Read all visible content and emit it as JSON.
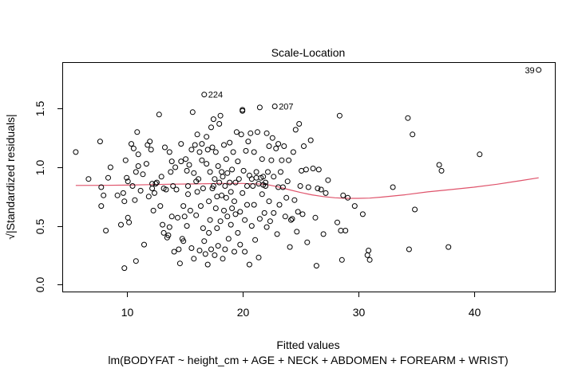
{
  "chart_data": {
    "type": "scatter",
    "title": "Scale-Location",
    "xlabel": "Fitted values",
    "ylabel": "√|Standardized residuals|",
    "subtitle": "lm(BODYFAT ~ height_cm + AGE + NECK + ABDOMEN + FOREARM + WRIST)",
    "xlim": [
      4.5,
      47.0
    ],
    "ylim": [
      -0.06,
      1.89
    ],
    "x_ticks": [
      10,
      20,
      30,
      40
    ],
    "y_ticks": [
      0.0,
      0.5,
      1.0,
      1.5
    ],
    "x_tick_labels": [
      "10",
      "20",
      "30",
      "40"
    ],
    "y_tick_labels": [
      "0.0",
      "0.5",
      "1.0",
      "1.5"
    ],
    "grid": false,
    "legend": "none",
    "point_color": "#000000",
    "smooth_color": "#DF536B",
    "points": [
      [
        5.6,
        1.13
      ],
      [
        6.7,
        0.9
      ],
      [
        7.7,
        1.22
      ],
      [
        7.8,
        0.83
      ],
      [
        7.8,
        0.67
      ],
      [
        8.0,
        0.76
      ],
      [
        8.2,
        0.46
      ],
      [
        8.4,
        0.91
      ],
      [
        8.6,
        1.0
      ],
      [
        9.2,
        0.76
      ],
      [
        9.5,
        0.51
      ],
      [
        9.7,
        0.78
      ],
      [
        9.8,
        0.14
      ],
      [
        9.8,
        0.71
      ],
      [
        9.9,
        1.06
      ],
      [
        10.0,
        0.91
      ],
      [
        10.1,
        0.88
      ],
      [
        10.1,
        0.57
      ],
      [
        10.2,
        0.53
      ],
      [
        10.4,
        1.2
      ],
      [
        10.5,
        0.84
      ],
      [
        10.6,
        1.16
      ],
      [
        10.7,
        0.72
      ],
      [
        10.8,
        0.96
      ],
      [
        10.8,
        0.2
      ],
      [
        10.9,
        1.3
      ],
      [
        11.0,
        1.11
      ],
      [
        11.0,
        1.01
      ],
      [
        11.2,
        0.8
      ],
      [
        11.4,
        0.94
      ],
      [
        11.5,
        0.34
      ],
      [
        11.7,
        1.03
      ],
      [
        11.8,
        1.19
      ],
      [
        11.9,
        0.75
      ],
      [
        12.0,
        1.22
      ],
      [
        12.1,
        1.15
      ],
      [
        12.2,
        0.86
      ],
      [
        12.2,
        0.82
      ],
      [
        12.3,
        0.63
      ],
      [
        12.4,
        0.78
      ],
      [
        12.5,
        0.86
      ],
      [
        12.6,
        0.87
      ],
      [
        12.8,
        1.45
      ],
      [
        12.9,
        0.67
      ],
      [
        13.0,
        0.92
      ],
      [
        13.1,
        0.51
      ],
      [
        13.2,
        0.44
      ],
      [
        13.2,
        0.82
      ],
      [
        13.3,
        1.17
      ],
      [
        13.4,
        0.81
      ],
      [
        13.5,
        0.4
      ],
      [
        13.6,
        0.42
      ],
      [
        13.7,
        1.13
      ],
      [
        13.7,
        0.49
      ],
      [
        13.8,
        0.96
      ],
      [
        13.9,
        1.05
      ],
      [
        13.9,
        0.58
      ],
      [
        14.0,
        0.84
      ],
      [
        14.1,
        0.28
      ],
      [
        14.2,
        1.0
      ],
      [
        14.3,
        0.81
      ],
      [
        14.4,
        0.57
      ],
      [
        14.5,
        0.3
      ],
      [
        14.6,
        0.18
      ],
      [
        14.7,
        1.05
      ],
      [
        14.7,
        1.2
      ],
      [
        14.8,
        0.39
      ],
      [
        14.9,
        0.37
      ],
      [
        14.9,
        0.67
      ],
      [
        15.0,
        0.58
      ],
      [
        15.1,
        1.07
      ],
      [
        15.2,
        0.5
      ],
      [
        15.2,
        0.97
      ],
      [
        15.3,
        0.77
      ],
      [
        15.3,
        0.84
      ],
      [
        15.4,
        1.02
      ],
      [
        15.5,
        0.63
      ],
      [
        15.6,
        1.15
      ],
      [
        15.6,
        0.31
      ],
      [
        15.7,
        1.47
      ],
      [
        15.8,
        0.95
      ],
      [
        15.8,
        0.22
      ],
      [
        15.9,
        1.19
      ],
      [
        16.0,
        0.59
      ],
      [
        16.0,
        0.88
      ],
      [
        16.1,
        1.28
      ],
      [
        16.1,
        0.79
      ],
      [
        16.2,
        0.9
      ],
      [
        16.3,
        1.13
      ],
      [
        16.3,
        0.29
      ],
      [
        16.4,
        0.67
      ],
      [
        16.5,
        1.06
      ],
      [
        16.5,
        1.2
      ],
      [
        16.6,
        0.48
      ],
      [
        16.6,
        0.82
      ],
      [
        16.7,
        1.62
      ],
      [
        16.7,
        0.37
      ],
      [
        16.8,
        0.26
      ],
      [
        16.9,
        1.26
      ],
      [
        16.9,
        1.03
      ],
      [
        17.0,
        1.15
      ],
      [
        17.0,
        0.17
      ],
      [
        17.1,
        0.71
      ],
      [
        17.1,
        0.44
      ],
      [
        17.2,
        0.55
      ],
      [
        17.2,
        0.96
      ],
      [
        17.3,
        0.3
      ],
      [
        17.3,
        1.34
      ],
      [
        17.4,
        1.17
      ],
      [
        17.4,
        0.82
      ],
      [
        17.5,
        0.84
      ],
      [
        17.5,
        1.41
      ],
      [
        17.6,
        0.9
      ],
      [
        17.6,
        0.25
      ],
      [
        17.7,
        1.13
      ],
      [
        17.7,
        0.65
      ],
      [
        17.8,
        0.75
      ],
      [
        17.8,
        0.48
      ],
      [
        17.9,
        1.01
      ],
      [
        17.9,
        0.33
      ],
      [
        18.0,
        1.37
      ],
      [
        18.0,
        0.87
      ],
      [
        18.1,
        1.44
      ],
      [
        18.1,
        0.54
      ],
      [
        18.2,
        0.96
      ],
      [
        18.2,
        0.76
      ],
      [
        18.3,
        0.22
      ],
      [
        18.3,
        0.92
      ],
      [
        18.4,
        1.19
      ],
      [
        18.4,
        0.63
      ],
      [
        18.5,
        0.84
      ],
      [
        18.5,
        0.3
      ],
      [
        18.6,
        1.07
      ],
      [
        18.6,
        0.74
      ],
      [
        18.7,
        0.58
      ],
      [
        18.7,
        0.95
      ],
      [
        18.8,
        0.39
      ],
      [
        18.9,
        1.21
      ],
      [
        18.9,
        0.87
      ],
      [
        19.0,
        0.51
      ],
      [
        19.0,
        0.79
      ],
      [
        19.1,
        0.98
      ],
      [
        19.1,
        0.65
      ],
      [
        19.2,
        1.13
      ],
      [
        19.3,
        0.28
      ],
      [
        19.3,
        0.71
      ],
      [
        19.4,
        0.87
      ],
      [
        19.4,
        0.6
      ],
      [
        19.5,
        1.3
      ],
      [
        19.6,
        0.44
      ],
      [
        19.6,
        1.05
      ],
      [
        19.7,
        0.9
      ],
      [
        19.8,
        0.62
      ],
      [
        19.8,
        0.34
      ],
      [
        19.9,
        1.28
      ],
      [
        20.0,
        0.78
      ],
      [
        20.0,
        1.49
      ],
      [
        20.0,
        1.48
      ],
      [
        20.1,
        0.97
      ],
      [
        20.2,
        0.55
      ],
      [
        20.2,
        0.28
      ],
      [
        20.3,
        1.14
      ],
      [
        20.4,
        0.84
      ],
      [
        20.4,
        0.68
      ],
      [
        20.5,
        1.22
      ],
      [
        20.6,
        0.93
      ],
      [
        20.6,
        0.17
      ],
      [
        20.7,
        1.29
      ],
      [
        20.8,
        0.9
      ],
      [
        20.8,
        0.5
      ],
      [
        20.9,
        0.84
      ],
      [
        21.0,
        0.68
      ],
      [
        21.0,
        1.13
      ],
      [
        21.1,
        0.38
      ],
      [
        21.2,
        0.96
      ],
      [
        21.2,
        0.91
      ],
      [
        21.3,
        1.3
      ],
      [
        21.4,
        0.86
      ],
      [
        21.4,
        0.23
      ],
      [
        21.5,
        0.56
      ],
      [
        21.5,
        1.51
      ],
      [
        21.6,
        0.91
      ],
      [
        21.7,
        0.77
      ],
      [
        21.7,
        1.07
      ],
      [
        21.8,
        0.85
      ],
      [
        21.8,
        0.92
      ],
      [
        21.9,
        0.61
      ],
      [
        22.0,
        0.87
      ],
      [
        22.0,
        0.84
      ],
      [
        22.1,
        1.29
      ],
      [
        22.1,
        0.49
      ],
      [
        22.2,
        0.96
      ],
      [
        22.3,
        0.71
      ],
      [
        22.3,
        1.18
      ],
      [
        22.4,
        0.54
      ],
      [
        22.5,
        1.06
      ],
      [
        22.6,
        1.25
      ],
      [
        22.7,
        0.92
      ],
      [
        22.7,
        0.61
      ],
      [
        22.8,
        1.52
      ],
      [
        22.9,
        1.16
      ],
      [
        23.0,
        0.43
      ],
      [
        23.1,
        0.83
      ],
      [
        23.1,
        1.2
      ],
      [
        23.2,
        0.68
      ],
      [
        23.3,
        0.96
      ],
      [
        23.4,
        1.06
      ],
      [
        23.5,
        0.83
      ],
      [
        23.6,
        1.18
      ],
      [
        23.7,
        0.58
      ],
      [
        23.8,
        0.74
      ],
      [
        23.9,
        0.88
      ],
      [
        24.0,
        1.06
      ],
      [
        24.1,
        0.32
      ],
      [
        24.2,
        0.55
      ],
      [
        24.3,
        0.56
      ],
      [
        24.4,
        1.13
      ],
      [
        24.5,
        0.72
      ],
      [
        24.6,
        1.32
      ],
      [
        24.7,
        0.45
      ],
      [
        24.8,
        0.62
      ],
      [
        24.9,
        1.37
      ],
      [
        25.0,
        0.84
      ],
      [
        25.1,
        0.97
      ],
      [
        25.2,
        0.6
      ],
      [
        25.3,
        1.18
      ],
      [
        25.5,
        0.98
      ],
      [
        25.6,
        0.36
      ],
      [
        25.7,
        0.83
      ],
      [
        25.9,
        1.23
      ],
      [
        26.1,
        0.99
      ],
      [
        26.3,
        0.57
      ],
      [
        26.4,
        0.16
      ],
      [
        26.5,
        0.82
      ],
      [
        26.6,
        0.98
      ],
      [
        26.8,
        0.81
      ],
      [
        27.0,
        0.43
      ],
      [
        27.2,
        0.78
      ],
      [
        27.4,
        0.89
      ],
      [
        28.2,
        0.53
      ],
      [
        28.4,
        1.44
      ],
      [
        28.5,
        0.46
      ],
      [
        28.6,
        0.21
      ],
      [
        28.7,
        0.76
      ],
      [
        28.9,
        0.46
      ],
      [
        29.1,
        0.74
      ],
      [
        29.7,
        0.67
      ],
      [
        30.4,
        0.6
      ],
      [
        30.8,
        0.25
      ],
      [
        30.9,
        0.29
      ],
      [
        31.0,
        0.21
      ],
      [
        33.0,
        0.83
      ],
      [
        34.3,
        1.42
      ],
      [
        34.4,
        0.3
      ],
      [
        34.7,
        1.28
      ],
      [
        34.9,
        0.64
      ],
      [
        37.0,
        1.02
      ],
      [
        37.2,
        0.97
      ],
      [
        37.8,
        0.32
      ],
      [
        40.5,
        1.11
      ],
      [
        45.6,
        1.83
      ]
    ],
    "annotations": [
      {
        "label": "39",
        "x": 45.6,
        "y": 1.83
      },
      {
        "label": "224",
        "x": 16.7,
        "y": 1.62
      },
      {
        "label": "207",
        "x": 22.8,
        "y": 1.52
      }
    ],
    "smooth": {
      "x": [
        5.6,
        8,
        10,
        12,
        14,
        16,
        18,
        20,
        22,
        23,
        24,
        25,
        26,
        27,
        28,
        29,
        30,
        31,
        32,
        34,
        36,
        38,
        40,
        42,
        44,
        45.6
      ],
      "y": [
        0.845,
        0.846,
        0.848,
        0.852,
        0.856,
        0.858,
        0.862,
        0.862,
        0.855,
        0.835,
        0.81,
        0.785,
        0.765,
        0.75,
        0.74,
        0.735,
        0.735,
        0.737,
        0.745,
        0.765,
        0.79,
        0.81,
        0.83,
        0.855,
        0.885,
        0.91
      ]
    }
  }
}
